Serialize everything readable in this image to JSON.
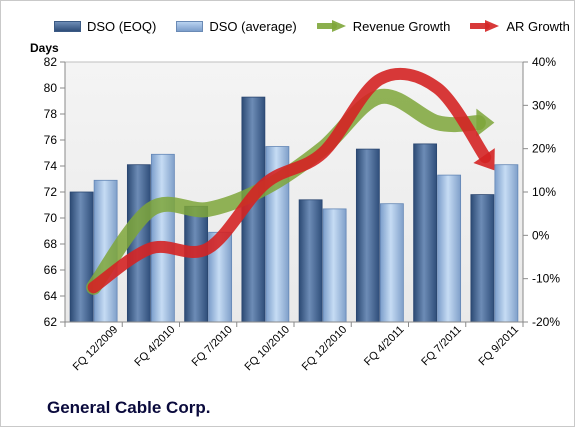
{
  "legend": {
    "dso_eoq": "DSO (EOQ)",
    "dso_avg": "DSO (average)",
    "revenue_growth": "Revenue Growth",
    "ar_growth": "AR Growth"
  },
  "y_left_title": "Days",
  "company_title": "General Cable Corp.",
  "colors": {
    "dso_eoq": "#3e5f8c",
    "dso_avg": "#9dbde5",
    "revenue_growth": "#7ea63a",
    "ar_growth": "#d42323",
    "plot_bg": "#f2f2f2"
  },
  "chart_data": {
    "type": "bar",
    "categories": [
      "FQ 12/2009",
      "FQ 4/2010",
      "FQ 7/2010",
      "FQ 10/2010",
      "FQ 12/2010",
      "FQ 4/2011",
      "FQ 7/2011",
      "FQ 9/2011"
    ],
    "series": [
      {
        "name": "DSO (EOQ)",
        "type": "bar",
        "axis": "left",
        "values": [
          72.0,
          74.1,
          70.9,
          79.3,
          71.4,
          75.3,
          75.7,
          71.8
        ]
      },
      {
        "name": "DSO (average)",
        "type": "bar",
        "axis": "left",
        "values": [
          72.9,
          74.9,
          68.9,
          75.5,
          70.7,
          71.1,
          73.3,
          74.1
        ]
      },
      {
        "name": "Revenue Growth",
        "type": "line",
        "axis": "right",
        "values": [
          -12.0,
          6.0,
          6.0,
          11.0,
          20.0,
          32.0,
          26.0,
          26.0
        ]
      },
      {
        "name": "AR Growth",
        "type": "line",
        "axis": "right",
        "values": [
          -12.0,
          -3.0,
          -3.0,
          12.0,
          19.0,
          36.0,
          34.0,
          15.0
        ]
      }
    ],
    "y_left": {
      "min": 62,
      "max": 82,
      "step": 2,
      "ticks": [
        "62",
        "64",
        "66",
        "68",
        "70",
        "72",
        "74",
        "76",
        "78",
        "80",
        "82"
      ]
    },
    "y_right": {
      "min": -20,
      "max": 40,
      "step": 10,
      "ticks": [
        "-20%",
        "-10%",
        "0%",
        "10%",
        "20%",
        "30%",
        "40%"
      ]
    },
    "grid": false,
    "legend_position": "top"
  }
}
